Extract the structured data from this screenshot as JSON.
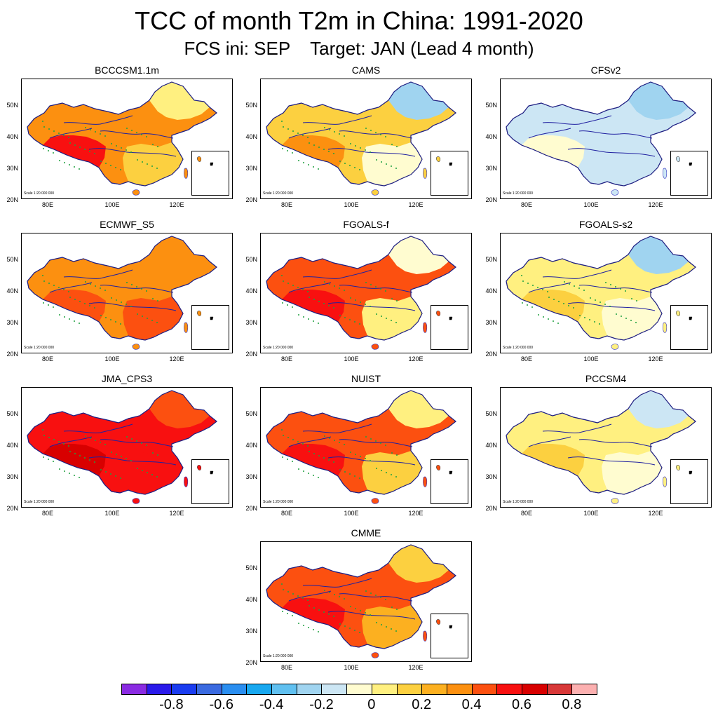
{
  "title": "TCC of month T2m in China: 1991-2020",
  "subtitle": "FCS ini: SEP    Target: JAN (Lead 4 month)",
  "map_axes": {
    "lat_labels": [
      "50N",
      "40N",
      "30N",
      "20N"
    ],
    "lon_labels": [
      "80E",
      "100E",
      "120E"
    ],
    "scale_note": "Scale 1:20 000 000"
  },
  "panels": [
    {
      "name": "BCCCSM1.1m",
      "tone": 0.4,
      "east_tone": 0.1,
      "stipple": true
    },
    {
      "name": "CAMS",
      "tone": 0.2,
      "east_tone": -0.15,
      "stipple": true
    },
    {
      "name": "CFSv2",
      "tone": -0.1,
      "east_tone": -0.2,
      "stipple": false
    },
    {
      "name": "ECMWF_S5",
      "tone": 0.35,
      "east_tone": 0.4,
      "stipple": true
    },
    {
      "name": "FGOALS-f",
      "tone": 0.45,
      "east_tone": 0.0,
      "stipple": true
    },
    {
      "name": "FGOALS-s2",
      "tone": 0.1,
      "east_tone": -0.15,
      "stipple": true
    },
    {
      "name": "JMA_CPS3",
      "tone": 0.55,
      "east_tone": 0.5,
      "stipple": true
    },
    {
      "name": "NUIST",
      "tone": 0.45,
      "east_tone": 0.15,
      "stipple": true
    },
    {
      "name": "PCCSM4",
      "tone": 0.05,
      "east_tone": -0.1,
      "stipple": false
    },
    {
      "name": "CMME",
      "tone": 0.45,
      "east_tone": 0.2,
      "stipple": true
    }
  ],
  "colorbar": {
    "ticks": [
      "-0.8",
      "-0.6",
      "-0.4",
      "-0.2",
      "0",
      "0.2",
      "0.4",
      "0.6",
      "0.8"
    ],
    "colors": [
      "#8a2be2",
      "#2a1aea",
      "#1a3cf0",
      "#3a6ae0",
      "#2a8ef0",
      "#18a8f0",
      "#60c0f0",
      "#a0d4f0",
      "#cce6f4",
      "#fffcd0",
      "#fff080",
      "#fcd040",
      "#fcb020",
      "#fc9010",
      "#fc5010",
      "#f81010",
      "#d80000",
      "#d83838",
      "#fcb0b0"
    ]
  }
}
